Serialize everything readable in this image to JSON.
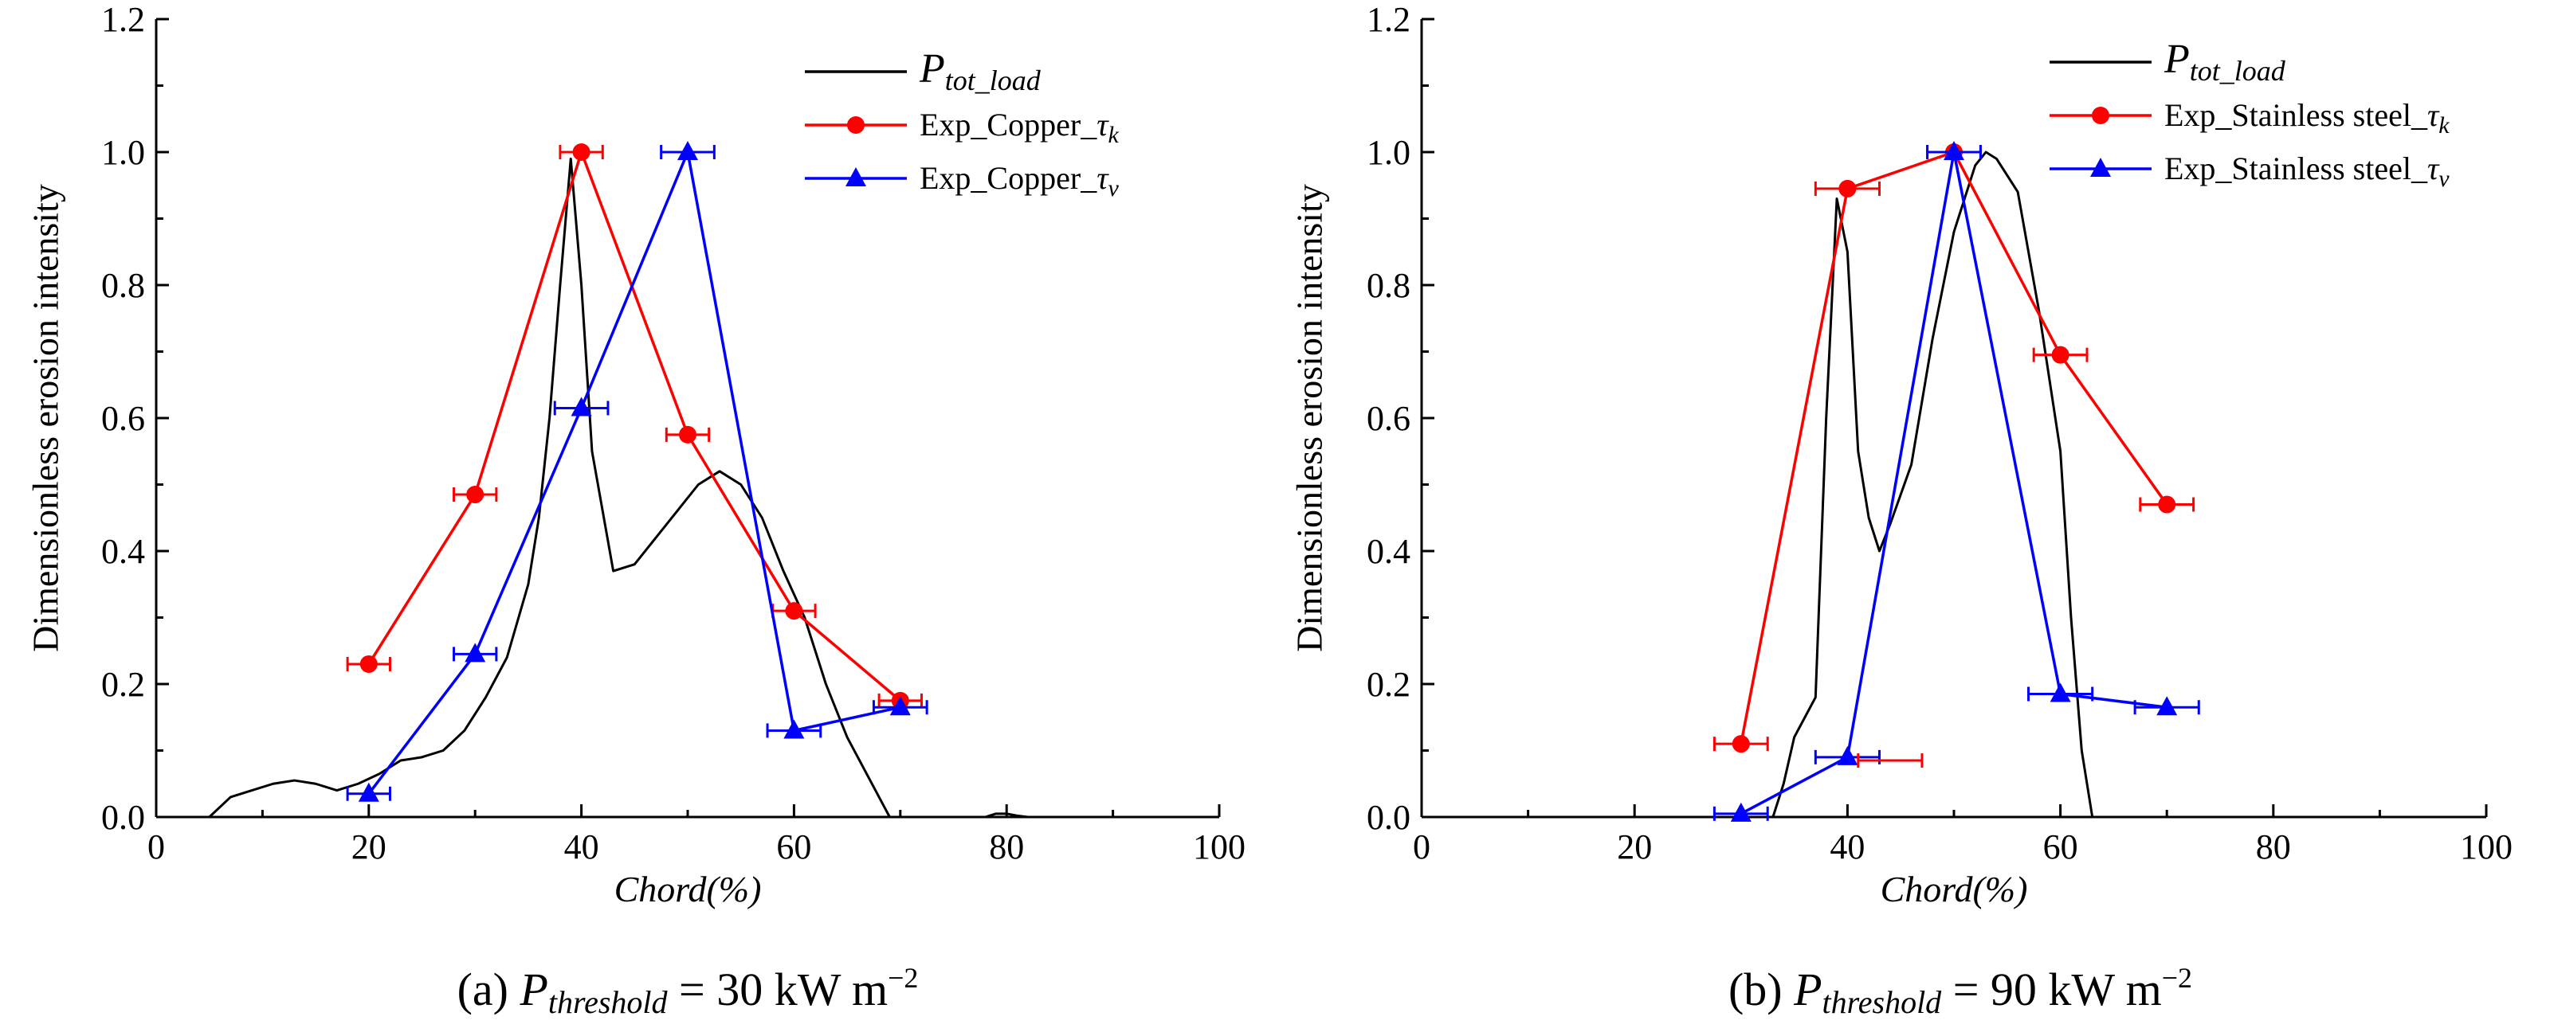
{
  "chart_data": [
    {
      "id": "a",
      "type": "line",
      "caption": {
        "label": "(a)",
        "var": "P",
        "var_sub": "threshold",
        "equals": "=",
        "value": "30",
        "unit": "kW m",
        "unit_exp": "−2"
      },
      "xlabel": "Chord(%)",
      "ylabel": "Dimensionless erosion intensity",
      "xlim": [
        0,
        100
      ],
      "ylim": [
        0,
        1.2
      ],
      "xticks": [
        0,
        20,
        40,
        60,
        80,
        100
      ],
      "yticks": [
        0.0,
        0.2,
        0.4,
        0.6,
        0.8,
        1.0,
        1.2
      ],
      "xtick_labels": [
        "0",
        "20",
        "40",
        "60",
        "80",
        "100"
      ],
      "ytick_labels": [
        "0.0",
        "0.2",
        "0.4",
        "0.6",
        "0.8",
        "1.0",
        "1.2"
      ],
      "legend_position": "top-right",
      "series": [
        {
          "name": "P_tot_load",
          "legend_main": "P",
          "legend_sub": "tot_load",
          "color": "#000000",
          "marker": "none",
          "x": [
            5,
            7,
            9,
            11,
            13,
            15,
            17,
            19,
            21,
            23,
            25,
            27,
            29,
            31,
            33,
            35,
            36,
            37,
            38,
            39,
            40,
            41,
            43,
            45,
            47,
            49,
            51,
            53,
            55,
            57,
            59,
            61,
            63,
            65,
            67,
            69,
            78,
            79,
            80,
            81,
            82
          ],
          "y": [
            0.0,
            0.03,
            0.04,
            0.05,
            0.055,
            0.05,
            0.04,
            0.05,
            0.065,
            0.085,
            0.09,
            0.1,
            0.13,
            0.18,
            0.24,
            0.35,
            0.45,
            0.6,
            0.8,
            0.99,
            0.8,
            0.55,
            0.37,
            0.38,
            0.42,
            0.46,
            0.5,
            0.52,
            0.5,
            0.45,
            0.37,
            0.3,
            0.2,
            0.12,
            0.06,
            0.0,
            0.0,
            0.005,
            0.005,
            0.002,
            0.0
          ]
        },
        {
          "name": "Exp_Copper_τk",
          "legend_main": "Exp_Copper_",
          "legend_tau": "τ",
          "legend_sub": "k",
          "color": "#ff0000",
          "marker": "circle",
          "x": [
            20,
            30,
            40,
            50,
            60,
            70
          ],
          "y": [
            0.23,
            0.485,
            1.0,
            0.575,
            0.31,
            0.175
          ],
          "xerr": [
            2,
            2,
            2,
            2,
            2,
            2
          ]
        },
        {
          "name": "Exp_Copper_τv",
          "legend_main": "Exp_Copper_",
          "legend_tau": "τ",
          "legend_sub": "v",
          "color": "#0000ff",
          "marker": "triangle",
          "x": [
            20,
            30,
            40,
            50,
            60,
            70
          ],
          "y": [
            0.035,
            0.245,
            0.615,
            1.0,
            0.13,
            0.165
          ],
          "xerr": [
            2,
            2,
            2.5,
            2.5,
            2.5,
            2.5
          ]
        }
      ]
    },
    {
      "id": "b",
      "type": "line",
      "caption": {
        "label": "(b)",
        "var": "P",
        "var_sub": "threshold",
        "equals": "=",
        "value": "90",
        "unit": "kW m",
        "unit_exp": "−2"
      },
      "xlabel": "Chord(%)",
      "ylabel": "Dimensionless erosion intensity",
      "xlim": [
        0,
        100
      ],
      "ylim": [
        0,
        1.2
      ],
      "xticks": [
        0,
        20,
        40,
        60,
        80,
        100
      ],
      "yticks": [
        0.0,
        0.2,
        0.4,
        0.6,
        0.8,
        1.0,
        1.2
      ],
      "xtick_labels": [
        "0",
        "20",
        "40",
        "60",
        "80",
        "100"
      ],
      "ytick_labels": [
        "0.0",
        "0.2",
        "0.4",
        "0.6",
        "0.8",
        "1.0",
        "1.2"
      ],
      "legend_position": "top-right",
      "series": [
        {
          "name": "P_tot_load",
          "legend_main": "P",
          "legend_sub": "tot_load",
          "color": "#000000",
          "marker": "none",
          "x": [
            33,
            34,
            35,
            36,
            37,
            38,
            39,
            40,
            41,
            42,
            43,
            44,
            46,
            48,
            50,
            52,
            53,
            54,
            56,
            58,
            60,
            61,
            62,
            63
          ],
          "y": [
            0.0,
            0.05,
            0.12,
            0.15,
            0.18,
            0.6,
            0.93,
            0.85,
            0.55,
            0.45,
            0.4,
            0.44,
            0.53,
            0.72,
            0.88,
            0.98,
            1.0,
            0.99,
            0.94,
            0.76,
            0.55,
            0.3,
            0.1,
            0.0
          ]
        },
        {
          "name": "Exp_Stainless steel_τk",
          "legend_main": "Exp_Stainless steel_",
          "legend_tau": "τ",
          "legend_sub": "k",
          "color": "#ff0000",
          "marker": "circle",
          "x": [
            30,
            40,
            50,
            60,
            70
          ],
          "y": [
            0.11,
            0.945,
            1.0,
            0.695,
            0.47
          ],
          "xerr": [
            2.5,
            3,
            2.5,
            2.5,
            2.5
          ]
        },
        {
          "name": "Exp_Stainless steel_τv",
          "legend_main": "Exp_Stainless steel_",
          "legend_tau": "τ",
          "legend_sub": "v",
          "color": "#0000ff",
          "marker": "triangle",
          "x": [
            30,
            40,
            50,
            60,
            70
          ],
          "y": [
            0.005,
            0.09,
            1.0,
            0.185,
            0.165
          ],
          "xerr": [
            2.5,
            3,
            2.5,
            3,
            3
          ]
        }
      ],
      "extra_errorbars": [
        {
          "x": 44,
          "y": 0.085,
          "xerr": 3,
          "color": "#ff0000"
        }
      ]
    }
  ]
}
